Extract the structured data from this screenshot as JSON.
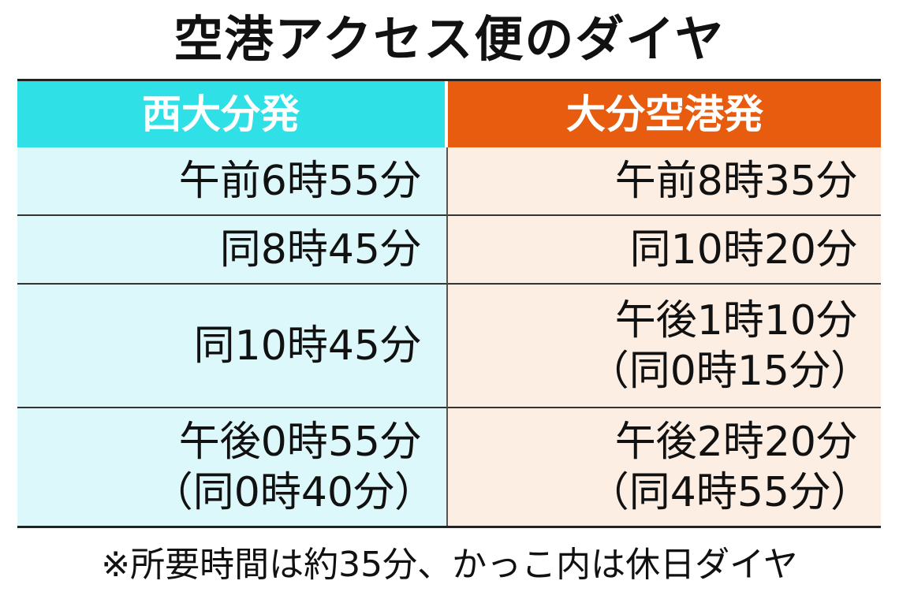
{
  "title": "空港アクセス便のダイヤ",
  "table": {
    "headers": [
      "西大分発",
      "大分空港発"
    ],
    "rows": [
      [
        [
          "午前6時55分"
        ],
        [
          "午前8時35分"
        ]
      ],
      [
        [
          "同8時45分"
        ],
        [
          "同10時20分"
        ]
      ],
      [
        [
          "同10時45分"
        ],
        [
          "午後1時10分",
          "（同0時15分）"
        ]
      ],
      [
        [
          "午後0時55分",
          "（同0時40分）"
        ],
        [
          "午後2時20分",
          "（同4時55分）"
        ]
      ]
    ]
  },
  "footnote": "※所要時間は約35分、かっこ内は休日ダイヤ"
}
